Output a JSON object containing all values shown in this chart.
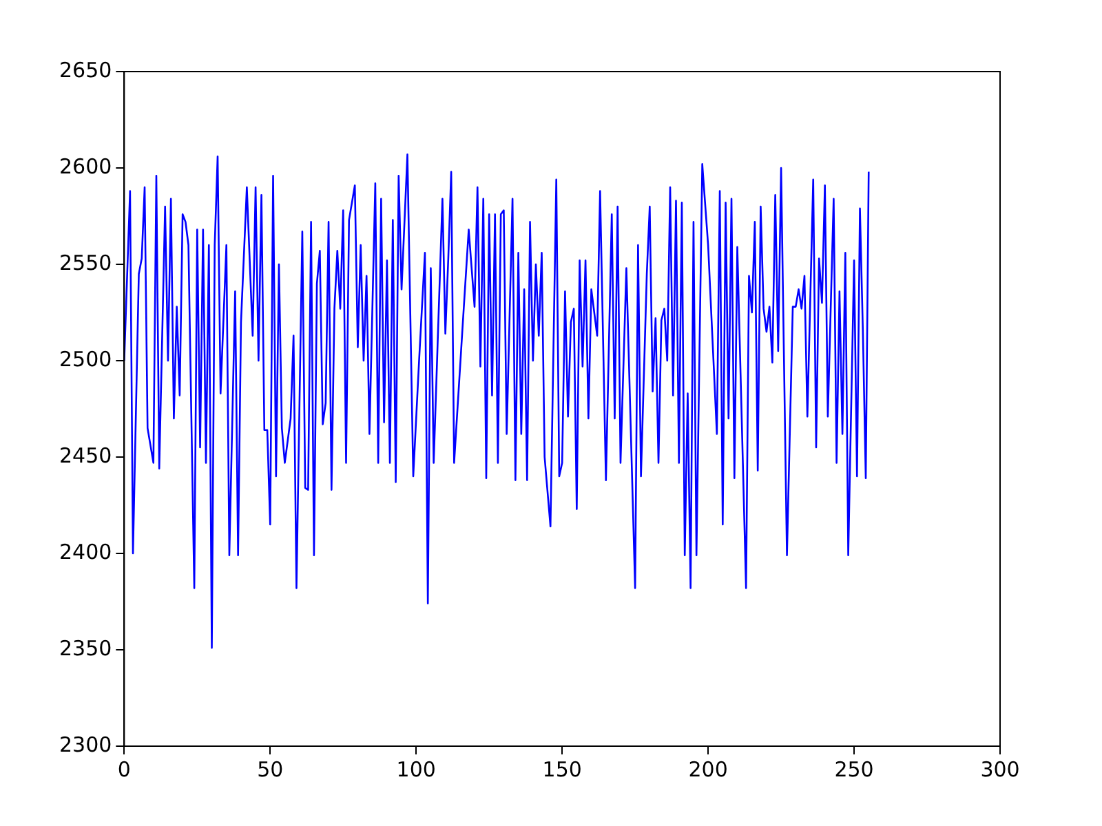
{
  "chart_data": {
    "type": "line",
    "x": [
      0,
      2,
      3,
      5,
      6,
      7,
      8,
      10,
      11,
      12,
      14,
      15,
      16,
      17,
      18,
      19,
      20,
      21,
      22,
      24,
      25,
      26,
      27,
      28,
      29,
      30,
      31,
      32,
      33,
      35,
      36,
      38,
      39,
      40,
      42,
      44,
      45,
      46,
      47,
      48,
      49,
      50,
      51,
      52,
      53,
      54,
      55,
      57,
      58,
      59,
      61,
      62,
      63,
      64,
      65,
      66,
      67,
      68,
      69,
      70,
      71,
      72,
      73,
      74,
      75,
      76,
      77,
      79,
      80,
      81,
      82,
      83,
      84,
      86,
      87,
      88,
      89,
      90,
      91,
      92,
      93,
      94,
      95,
      97,
      99,
      101,
      103,
      104,
      105,
      106,
      109,
      110,
      111,
      112,
      113,
      116,
      118,
      120,
      121,
      122,
      123,
      124,
      125,
      126,
      127,
      128,
      129,
      130,
      131,
      133,
      134,
      135,
      136,
      137,
      138,
      139,
      140,
      141,
      142,
      143,
      144,
      146,
      148,
      149,
      150,
      151,
      152,
      153,
      154,
      155,
      156,
      157,
      158,
      159,
      160,
      162,
      163,
      165,
      167,
      168,
      169,
      170,
      172,
      175,
      176,
      177,
      179,
      180,
      181,
      182,
      183,
      184,
      185,
      186,
      187,
      188,
      189,
      190,
      191,
      192,
      193,
      194,
      195,
      196,
      198,
      200,
      203,
      204,
      205,
      206,
      207,
      208,
      209,
      210,
      213,
      214,
      215,
      216,
      217,
      218,
      219,
      220,
      221,
      222,
      223,
      224,
      225,
      227,
      229,
      230,
      231,
      232,
      233,
      234,
      236,
      237,
      238,
      239,
      240,
      241,
      243,
      244,
      245,
      246,
      247,
      248,
      250,
      251,
      252,
      253,
      254,
      255
    ],
    "series": [
      {
        "color": "#0000ff",
        "values": [
          2500,
          2588,
          2400,
          2545,
          2553,
          2590,
          2465,
          2447,
          2596,
          2444,
          2580,
          2500,
          2584,
          2470,
          2528,
          2482,
          2576,
          2572,
          2560,
          2382,
          2568,
          2455,
          2568,
          2447,
          2560,
          2351,
          2560,
          2606,
          2483,
          2560,
          2399,
          2536,
          2399,
          2520,
          2590,
          2513,
          2590,
          2500,
          2586,
          2464,
          2464,
          2415,
          2596,
          2440,
          2550,
          2465,
          2447,
          2470,
          2513,
          2382,
          2567,
          2434,
          2433,
          2572,
          2399,
          2540,
          2557,
          2467,
          2478,
          2572,
          2433,
          2527,
          2557,
          2527,
          2578,
          2447,
          2573,
          2591,
          2507,
          2560,
          2500,
          2544,
          2462,
          2592,
          2447,
          2584,
          2468,
          2552,
          2447,
          2573,
          2437,
          2596,
          2537,
          2607,
          2440,
          2500,
          2556,
          2374,
          2548,
          2447,
          2584,
          2514,
          2553,
          2598,
          2447,
          2520,
          2568,
          2528,
          2590,
          2497,
          2584,
          2439,
          2576,
          2482,
          2576,
          2447,
          2576,
          2578,
          2462,
          2584,
          2438,
          2556,
          2462,
          2537,
          2438,
          2572,
          2500,
          2550,
          2513,
          2556,
          2450,
          2414,
          2594,
          2440,
          2447,
          2536,
          2471,
          2520,
          2527,
          2423,
          2552,
          2497,
          2552,
          2470,
          2537,
          2513,
          2588,
          2438,
          2576,
          2470,
          2580,
          2447,
          2548,
          2382,
          2560,
          2440,
          2545,
          2580,
          2484,
          2522,
          2447,
          2521,
          2527,
          2500,
          2590,
          2482,
          2583,
          2447,
          2582,
          2399,
          2483,
          2382,
          2572,
          2399,
          2602,
          2560,
          2462,
          2588,
          2415,
          2582,
          2470,
          2584,
          2439,
          2559,
          2382,
          2544,
          2525,
          2572,
          2443,
          2580,
          2527,
          2515,
          2528,
          2499,
          2586,
          2505,
          2600,
          2399,
          2528,
          2528,
          2537,
          2527,
          2544,
          2471,
          2594,
          2455,
          2553,
          2530,
          2591,
          2471,
          2584,
          2447,
          2536,
          2462,
          2556,
          2399,
          2552,
          2440,
          2579,
          2516,
          2439,
          2598
        ]
      }
    ],
    "xlim": [
      0,
      300
    ],
    "ylim": [
      2300,
      2650
    ],
    "xticks": [
      0,
      50,
      100,
      150,
      200,
      250,
      300
    ],
    "yticks": [
      2300,
      2350,
      2400,
      2450,
      2500,
      2550,
      2600,
      2650
    ],
    "grid": false
  }
}
